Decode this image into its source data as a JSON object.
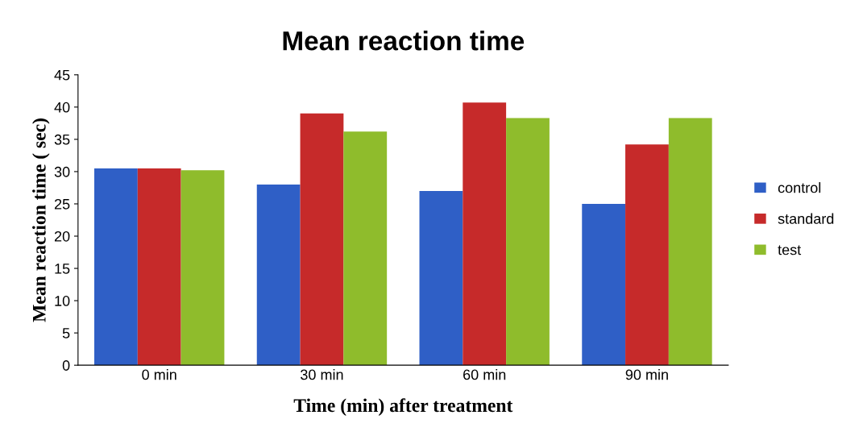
{
  "chart_data": {
    "type": "bar",
    "title": "Mean reaction time",
    "xlabel": "Time (min) after treatment",
    "ylabel": "Mean reaction time ( sec)",
    "categories": [
      "0 min",
      "30 min",
      "60 min",
      "90 min"
    ],
    "series": [
      {
        "name": "control",
        "color": "#2f5fc6",
        "values": [
          30.5,
          28,
          27,
          25
        ]
      },
      {
        "name": "standard",
        "color": "#c62a2a",
        "values": [
          30.5,
          39,
          40.7,
          34.2
        ]
      },
      {
        "name": "test",
        "color": "#8fbc2c",
        "values": [
          30.2,
          36.2,
          38.3,
          38.3
        ]
      }
    ],
    "ylim": [
      0,
      45
    ],
    "yticks": [
      0,
      5,
      10,
      15,
      20,
      25,
      30,
      35,
      40,
      45
    ],
    "grid": false,
    "legend": "right"
  }
}
